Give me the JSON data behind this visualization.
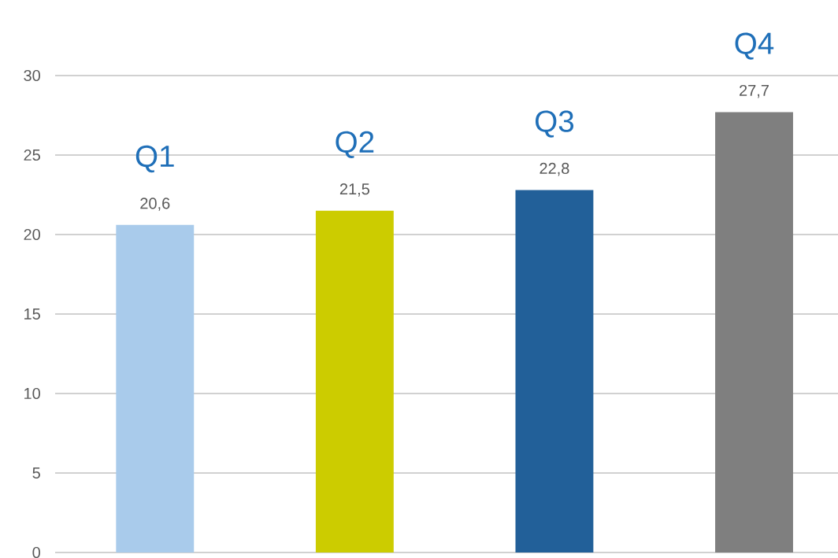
{
  "chart_data": {
    "type": "bar",
    "categories": [
      "Q1",
      "Q2",
      "Q3",
      "Q4"
    ],
    "values": [
      20.6,
      21.5,
      22.8,
      27.7
    ],
    "colors": [
      "#a9cbeb",
      "#cccc00",
      "#226099",
      "#7f7f7f"
    ],
    "value_labels": [
      "20,6",
      "21,5",
      "22,8",
      "27,7"
    ],
    "ylim": [
      0,
      30
    ],
    "yticks": [
      0,
      5,
      10,
      15,
      20,
      25,
      30
    ],
    "grid": "y"
  }
}
